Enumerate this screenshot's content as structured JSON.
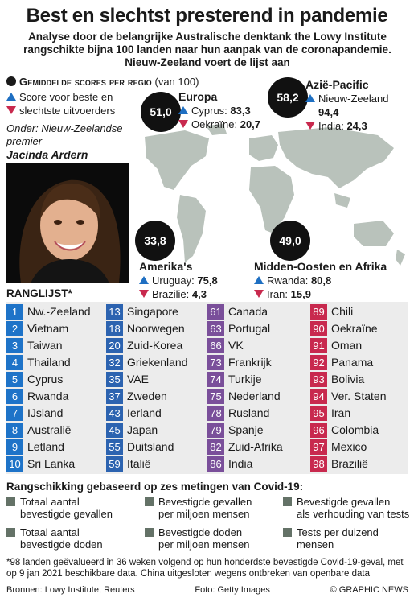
{
  "title": "Best en slechtst presterend in pandemie",
  "subtitle": "Analyse door de belangrijke Australische denktank the Lowy Institute rangschikte bijna 100 landen naar hun aanpak van de coronapandemie. Nieuw-Zeeland voert de lijst aan",
  "legend": {
    "heading": "Gemiddelde scores per regio",
    "heading_suffix": "(van 100)",
    "line1": "Score voor beste en",
    "line2": "slechtste uitvoerders",
    "up_color": "#1e6fc2",
    "down_color": "#c8294e"
  },
  "photo_caption": {
    "line1": "Onder: Nieuw-Zeelandse",
    "line2": "premier",
    "name": "Jacinda Ardern"
  },
  "regions": {
    "europa": {
      "name": "Europa",
      "score": "51,0",
      "best": "Cyprus:",
      "best_val": "83,3",
      "worst": "Oekraïne:",
      "worst_val": "20,7"
    },
    "azie": {
      "name": "Azië-Pacific",
      "score": "58,2",
      "best": "Nieuw-Zeeland",
      "best_val": "94,4",
      "worst": "India:",
      "worst_val": "24,3"
    },
    "amerika": {
      "name": "Amerika's",
      "score": "33,8",
      "best": "Uruguay:",
      "best_val": "75,8",
      "worst": "Brazilië:",
      "worst_val": "4,3"
    },
    "midden": {
      "name": "Midden-Oosten en Afrika",
      "score": "49,0",
      "best": "Rwanda:",
      "best_val": "80,8",
      "worst": "Iran:",
      "worst_val": "15,9"
    }
  },
  "ranking": {
    "title": "RANGLIJST*",
    "columns": [
      {
        "color": "#1e73c8",
        "items": [
          {
            "rank": "1",
            "country": "Nw.-Zeeland"
          },
          {
            "rank": "2",
            "country": "Vietnam"
          },
          {
            "rank": "3",
            "country": "Taiwan"
          },
          {
            "rank": "4",
            "country": "Thailand"
          },
          {
            "rank": "5",
            "country": "Cyprus"
          },
          {
            "rank": "6",
            "country": "Rwanda"
          },
          {
            "rank": "7",
            "country": "IJsland"
          },
          {
            "rank": "8",
            "country": "Australië"
          },
          {
            "rank": "9",
            "country": "Letland"
          },
          {
            "rank": "10",
            "country": "Sri Lanka"
          }
        ]
      },
      {
        "color": "#2c63b0",
        "items": [
          {
            "rank": "13",
            "country": "Singapore"
          },
          {
            "rank": "18",
            "country": "Noorwegen"
          },
          {
            "rank": "20",
            "country": "Zuid-Korea"
          },
          {
            "rank": "32",
            "country": "Griekenland"
          },
          {
            "rank": "35",
            "country": "VAE"
          },
          {
            "rank": "37",
            "country": "Zweden"
          },
          {
            "rank": "43",
            "country": "Ierland"
          },
          {
            "rank": "45",
            "country": "Japan"
          },
          {
            "rank": "55",
            "country": "Duitsland"
          },
          {
            "rank": "59",
            "country": "Italië"
          }
        ]
      },
      {
        "color": "#7a4f9a",
        "items": [
          {
            "rank": "61",
            "country": "Canada"
          },
          {
            "rank": "63",
            "country": "Portugal"
          },
          {
            "rank": "66",
            "country": "VK"
          },
          {
            "rank": "73",
            "country": "Frankrijk"
          },
          {
            "rank": "74",
            "country": "Turkije"
          },
          {
            "rank": "75",
            "country": "Nederland"
          },
          {
            "rank": "78",
            "country": "Rusland"
          },
          {
            "rank": "79",
            "country": "Spanje"
          },
          {
            "rank": "82",
            "country": "Zuid-Afrika"
          },
          {
            "rank": "86",
            "country": "India"
          }
        ]
      },
      {
        "color": "#c8294e",
        "items": [
          {
            "rank": "89",
            "country": "Chili"
          },
          {
            "rank": "90",
            "country": "Oekraïne"
          },
          {
            "rank": "91",
            "country": "Oman"
          },
          {
            "rank": "92",
            "country": "Panama"
          },
          {
            "rank": "93",
            "country": "Bolivia"
          },
          {
            "rank": "94",
            "country": "Ver. Staten"
          },
          {
            "rank": "95",
            "country": "Iran"
          },
          {
            "rank": "96",
            "country": "Colombia"
          },
          {
            "rank": "97",
            "country": "Mexico"
          },
          {
            "rank": "98",
            "country": "Brazilië"
          }
        ]
      }
    ]
  },
  "basis": {
    "title": "Rangschikking gebaseerd op zes metingen van Covid-19:",
    "metrics": [
      {
        "line1": "Totaal aantal",
        "line2": "bevestigde gevallen"
      },
      {
        "line1": "Bevestigde gevallen",
        "line2": "per miljoen mensen"
      },
      {
        "line1": "Bevestigde gevallen",
        "line2": "als verhouding van tests"
      },
      {
        "line1": "Totaal aantal",
        "line2": "bevestigde doden"
      },
      {
        "line1": "Bevestigde doden",
        "line2": "per miljoen mensen"
      },
      {
        "line1": "Tests per duizend",
        "line2": "mensen"
      }
    ]
  },
  "footnote": "*98 landen geëvalueerd in 36 weken volgend op hun honderdste bevestigde Covid-19-geval, met op 9 jan 2021 beschikbare data. China uitgesloten wegens ontbreken van openbare data",
  "footer": {
    "sources": "Bronnen: Lowy Institute, Reuters",
    "photo": "Foto: Getty Images",
    "credit": "© GRAPHIC NEWS"
  }
}
